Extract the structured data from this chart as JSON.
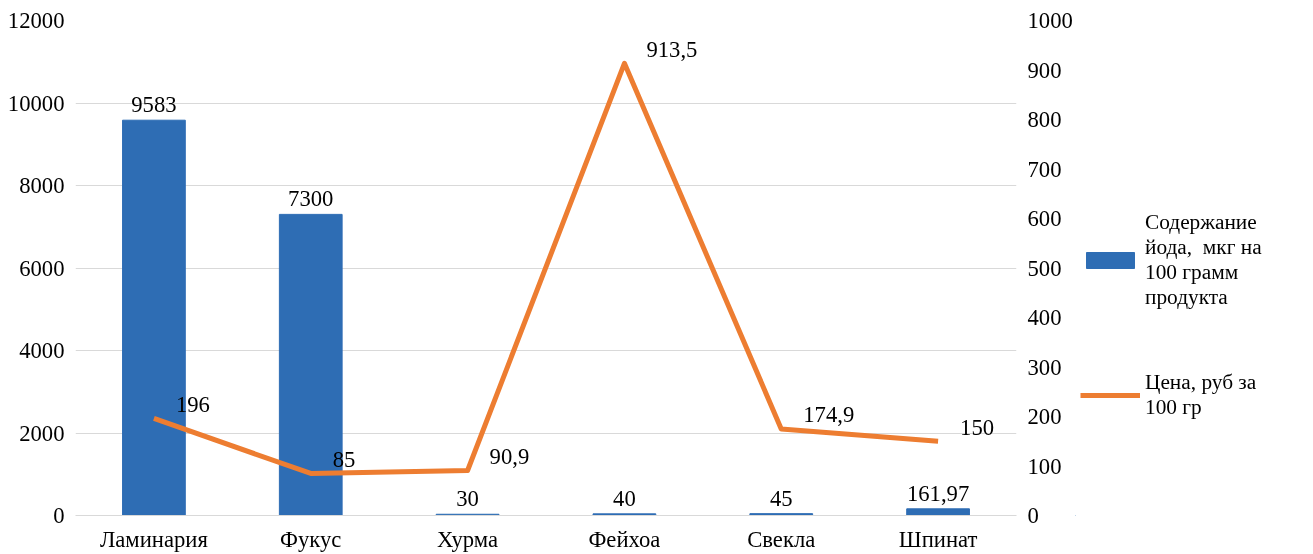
{
  "chart_data": {
    "type": "bar",
    "categories": [
      "Ламинария",
      "Фукус",
      "Хурма",
      "Фейхоа",
      "Свекла",
      "Шпинат"
    ],
    "series": [
      {
        "name": "Содержание йода,  мкг на 100 грамм продукта",
        "color": "#2e6db4",
        "values": [
          9583,
          7300,
          30,
          40,
          45,
          161.97
        ],
        "value_labels": [
          "9583",
          "7300",
          "30",
          "40",
          "45",
          "161,97"
        ]
      },
      {
        "name": "Цена, руб за 100 гр",
        "type": "line",
        "axis": "y2",
        "color": "#ed7d31",
        "values": [
          196,
          85,
          90.9,
          913.5,
          174.9,
          150
        ],
        "value_labels": [
          "196",
          "85",
          "90,9",
          "913,5",
          "174,9",
          "150"
        ]
      }
    ],
    "ylim": [
      0,
      12000
    ],
    "yticks": [
      0,
      2000,
      4000,
      6000,
      8000,
      10000,
      12000
    ],
    "y2lim": [
      0,
      1000
    ],
    "y2ticks": [
      0,
      100,
      200,
      300,
      400,
      500,
      600,
      700,
      800,
      900,
      1000
    ],
    "grid": "y",
    "legend": "right"
  }
}
